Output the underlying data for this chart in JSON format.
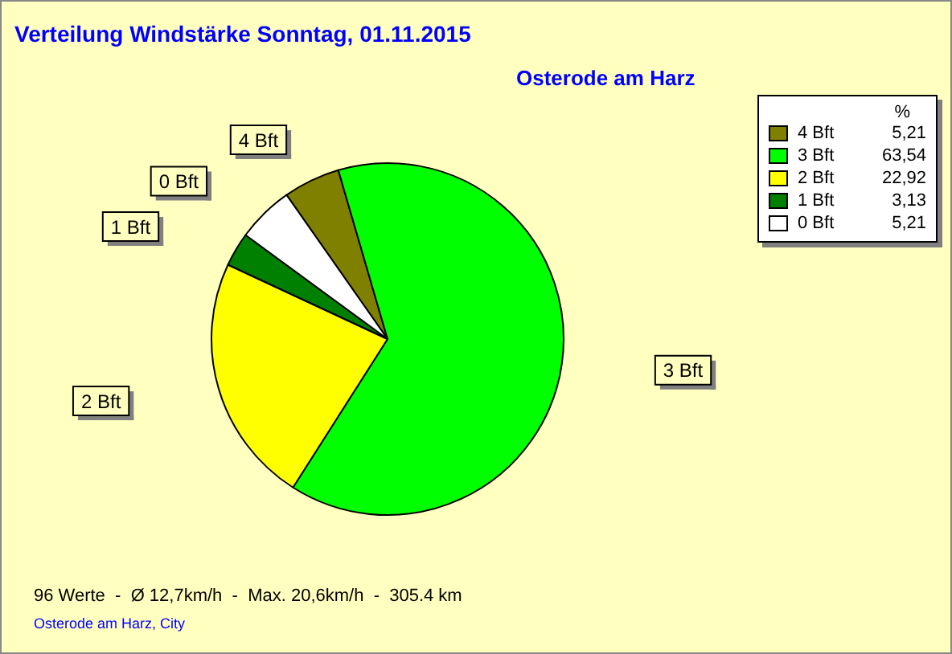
{
  "chart_data": {
    "type": "pie",
    "title": "Verteilung Windstärke  Sonntag, 01.11.2015",
    "subtitle": "Osterode am Harz",
    "legend_title": "%",
    "legend": "top right",
    "categories": [
      "4 Bft",
      "3 Bft",
      "2 Bft",
      "1 Bft",
      "0 Bft"
    ],
    "values": [
      5.21,
      63.54,
      22.92,
      3.13,
      5.21
    ],
    "value_labels": [
      "5,21",
      "63,54",
      "22,92",
      "3,13",
      "5,21"
    ],
    "colors": [
      "#808000",
      "#00ff00",
      "#ffff00",
      "#008000",
      "#ffffff"
    ],
    "annotations": [
      "96 Werte  -  Ø 12,7km/h  -  Max. 20,6km/h  -  305.4 km",
      "Osterode am Harz, City"
    ]
  }
}
